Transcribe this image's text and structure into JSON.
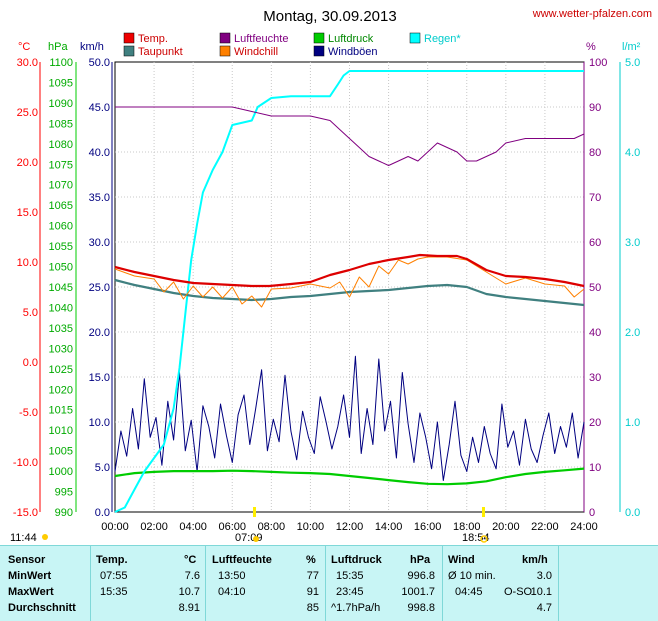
{
  "header": {
    "title": "Montag, 30.09.2013",
    "site": "www.wetter-pfalzen.com"
  },
  "chart_data": {
    "type": "line",
    "title": "Montag, 30.09.2013",
    "grid": true,
    "x": {
      "range": [
        0,
        24
      ],
      "ticks": [
        "00:00",
        "02:00",
        "04:00",
        "06:00",
        "08:00",
        "10:00",
        "12:00",
        "14:00",
        "16:00",
        "18:00",
        "20:00",
        "22:00",
        "24:00"
      ]
    },
    "axes": {
      "temp": {
        "unit": "°C",
        "range": [
          -15,
          30
        ],
        "color": "#ff0000",
        "ticks": [
          "30.0",
          "25.0",
          "20.0",
          "15.0",
          "10.0",
          "5.0",
          "0.0",
          "-5.0",
          "-10.0",
          "-15.0"
        ]
      },
      "pressure": {
        "unit": "hPa",
        "range": [
          990,
          1100
        ],
        "color": "#00cc00",
        "ticks": [
          "1100",
          "1095",
          "1090",
          "1085",
          "1080",
          "1075",
          "1070",
          "1065",
          "1060",
          "1055",
          "1050",
          "1045",
          "1040",
          "1035",
          "1030",
          "1025",
          "1020",
          "1015",
          "1010",
          "1005",
          "1000",
          "995",
          "990"
        ]
      },
      "wind": {
        "unit": "km/h",
        "range": [
          0,
          50
        ],
        "color": "#000080",
        "ticks": [
          "50.0",
          "45.0",
          "40.0",
          "35.0",
          "30.0",
          "25.0",
          "20.0",
          "15.0",
          "10.0",
          "5.0",
          "0.0"
        ]
      },
      "humidity": {
        "unit": "%",
        "range": [
          0,
          100
        ],
        "color": "#800080",
        "ticks": [
          "100",
          "90",
          "80",
          "70",
          "60",
          "50",
          "40",
          "30",
          "20",
          "10",
          "0"
        ]
      },
      "rain": {
        "unit": "l/m²",
        "range": [
          0,
          5
        ],
        "color": "#00cccc",
        "ticks": [
          "5.0",
          "4.0",
          "3.0",
          "2.0",
          "1.0",
          "0.0"
        ]
      }
    },
    "legend": [
      {
        "name": "Temp.",
        "color": "#ee0000"
      },
      {
        "name": "Luftfeuchte",
        "color": "#800080"
      },
      {
        "name": "Luftdruck",
        "color": "#00cc00"
      },
      {
        "name": "Regen*",
        "color": "#00ffff"
      },
      {
        "name": "Taupunkt",
        "color": "#408080"
      },
      {
        "name": "Windchill",
        "color": "#ff8000"
      },
      {
        "name": "Windböen",
        "color": "#000080"
      }
    ],
    "series": [
      {
        "name": "Temp.",
        "axis": "temp",
        "color": "#dd0000",
        "x": [
          0,
          1,
          2,
          3,
          4,
          5,
          6,
          7,
          7.9,
          9,
          10,
          11,
          12,
          13,
          14,
          15,
          15.6,
          16.5,
          17.5,
          18,
          19,
          20,
          21,
          22,
          23,
          24
        ],
        "y": [
          9.5,
          9.0,
          8.6,
          8.2,
          7.9,
          7.8,
          7.7,
          7.6,
          7.6,
          7.8,
          8.0,
          8.7,
          9.2,
          9.8,
          10.2,
          10.5,
          10.7,
          10.6,
          10.6,
          10.3,
          9.2,
          8.6,
          8.5,
          8.3,
          8.0,
          7.6
        ]
      },
      {
        "name": "Taupunkt",
        "axis": "temp",
        "color": "#408080",
        "x": [
          0,
          1,
          2,
          3,
          4,
          5,
          6,
          7,
          8,
          9,
          10,
          11,
          12,
          13,
          14,
          15,
          16,
          17,
          18,
          19,
          20,
          21,
          22,
          23,
          24
        ],
        "y": [
          8.2,
          7.7,
          7.3,
          6.9,
          6.6,
          6.4,
          6.3,
          6.2,
          6.3,
          6.5,
          6.6,
          6.8,
          7.0,
          7.1,
          7.2,
          7.4,
          7.6,
          7.7,
          7.5,
          6.8,
          6.5,
          6.3,
          6.1,
          5.9,
          5.7
        ]
      },
      {
        "name": "Windchill",
        "axis": "temp",
        "color": "#ff8000",
        "x": [
          0,
          1,
          2,
          2.5,
          3,
          3.5,
          4,
          4.5,
          5,
          5.5,
          6,
          6.5,
          7,
          7.5,
          8,
          9,
          10,
          11,
          11.5,
          12,
          12.5,
          13,
          13.5,
          14,
          14.5,
          15,
          15.5,
          16,
          17,
          18,
          19,
          20,
          21,
          22,
          23,
          23.5,
          24
        ],
        "y": [
          9.3,
          8.6,
          8.3,
          7.0,
          8.0,
          6.3,
          7.6,
          6.5,
          7.5,
          6.4,
          7.5,
          5.8,
          6.6,
          5.5,
          7.3,
          7.4,
          7.8,
          7.4,
          8.0,
          6.5,
          8.5,
          7.5,
          9.6,
          8.8,
          10.2,
          9.8,
          10.3,
          10.5,
          10.5,
          10.2,
          9.0,
          7.8,
          8.4,
          7.8,
          7.6,
          6.5,
          7.3
        ]
      },
      {
        "name": "Luftfeuchte",
        "axis": "humidity",
        "color": "#800080",
        "x": [
          0,
          2,
          3,
          4,
          5,
          6,
          7,
          8,
          9,
          10,
          11,
          11.5,
          12,
          12.5,
          13,
          13.5,
          14,
          14.5,
          15,
          15.5,
          16,
          16.5,
          17,
          17.5,
          18,
          18.5,
          19,
          19.5,
          20,
          21,
          22,
          23,
          23.5,
          24
        ],
        "y": [
          90,
          90,
          90,
          90,
          90,
          90,
          89,
          88,
          88,
          88,
          87,
          85,
          83,
          81,
          79,
          78,
          77,
          78,
          79,
          78,
          80,
          82,
          81,
          80,
          78,
          78,
          79,
          80,
          82,
          83,
          83,
          83,
          83,
          84
        ]
      },
      {
        "name": "Luftdruck",
        "axis": "pressure",
        "color": "#00cc00",
        "x": [
          0,
          1,
          2,
          3,
          4,
          5,
          6,
          7,
          8,
          9,
          10,
          11,
          12,
          13,
          14,
          15,
          16,
          17,
          18,
          19,
          20,
          21,
          22,
          23,
          24
        ],
        "y": [
          998.8,
          999.5,
          999.8,
          1000.0,
          1000.0,
          1000.0,
          1000.1,
          1000.0,
          999.8,
          999.6,
          999.5,
          999.3,
          998.8,
          998.3,
          997.8,
          997.3,
          996.9,
          996.8,
          997.0,
          997.5,
          998.5,
          999.3,
          999.8,
          1000.2,
          1000.6
        ]
      },
      {
        "name": "Regen*",
        "axis": "rain",
        "color": "#00ffff",
        "x": [
          0,
          0.5,
          1.0,
          1.5,
          2.0,
          2.5,
          3.0,
          3.3,
          3.6,
          3.9,
          4.2,
          4.5,
          5.0,
          5.5,
          6.0,
          7.0,
          7.3,
          8.0,
          9.0,
          10.0,
          11.0,
          11.4,
          11.7,
          12.0,
          13.0,
          16.0,
          20.0,
          24.0
        ],
        "y": [
          0,
          0.05,
          0.25,
          0.45,
          0.6,
          0.75,
          1.15,
          1.6,
          2.2,
          2.8,
          3.2,
          3.55,
          3.8,
          4.0,
          4.3,
          4.35,
          4.5,
          4.6,
          4.62,
          4.62,
          4.62,
          4.75,
          4.85,
          4.9,
          4.9,
          4.9,
          4.9,
          4.9
        ]
      },
      {
        "name": "Windböen",
        "axis": "wind",
        "color": "#000080",
        "x": [
          0,
          0.3,
          0.6,
          0.9,
          1.2,
          1.5,
          1.8,
          2.1,
          2.4,
          2.7,
          3.0,
          3.3,
          3.6,
          3.9,
          4.2,
          4.5,
          4.8,
          5.1,
          5.4,
          5.7,
          6.0,
          6.3,
          6.6,
          6.9,
          7.2,
          7.5,
          7.8,
          8.1,
          8.4,
          8.7,
          9.0,
          9.3,
          9.6,
          9.9,
          10.2,
          10.5,
          10.8,
          11.1,
          11.4,
          11.7,
          12.0,
          12.3,
          12.6,
          12.9,
          13.2,
          13.5,
          13.8,
          14.1,
          14.4,
          14.7,
          15.0,
          15.3,
          15.6,
          15.9,
          16.2,
          16.5,
          16.8,
          17.1,
          17.4,
          17.7,
          18.0,
          18.3,
          18.6,
          18.9,
          19.2,
          19.5,
          19.8,
          20.1,
          20.4,
          20.7,
          21.0,
          21.3,
          21.6,
          21.9,
          22.2,
          22.5,
          22.8,
          23.1,
          23.4,
          23.7,
          24.0
        ],
        "y": [
          4.5,
          9.0,
          6.2,
          11.5,
          7.0,
          14.8,
          8.3,
          10.5,
          5.2,
          12.3,
          8.0,
          15.5,
          6.8,
          10.2,
          4.5,
          11.8,
          9.5,
          6.0,
          12.0,
          8.5,
          5.5,
          10.8,
          13.0,
          7.5,
          11.5,
          15.8,
          6.8,
          10.3,
          7.8,
          15.2,
          9.0,
          5.8,
          11.2,
          8.3,
          6.5,
          12.8,
          10.0,
          7.0,
          9.5,
          13.0,
          8.3,
          17.3,
          6.5,
          11.5,
          7.5,
          17.0,
          9.0,
          12.3,
          6.0,
          15.5,
          9.8,
          5.5,
          11.0,
          8.3,
          4.8,
          10.0,
          3.5,
          7.5,
          12.3,
          6.3,
          4.5,
          8.3,
          5.5,
          9.5,
          6.5,
          4.8,
          12.0,
          7.2,
          9.0,
          5.2,
          10.3,
          7.0,
          5.5,
          8.5,
          11.0,
          6.5,
          9.5,
          7.2,
          11.0,
          6.0,
          10.0
        ]
      }
    ],
    "markers": [
      {
        "label": "11:44",
        "at": "left",
        "icon": "sun-rise-icon"
      },
      {
        "label": "07:09",
        "at": 7.15,
        "icon": "sun-icon"
      },
      {
        "label": "18:54",
        "at": 18.9,
        "icon": "sun-icon"
      }
    ]
  },
  "stats": {
    "headers": {
      "sensor": "Sensor",
      "temp": "Temp.",
      "temp_unit": "°C",
      "hum": "Luftfeuchte",
      "hum_unit": "%",
      "press": "Luftdruck",
      "press_unit": "hPa",
      "wind": "Wind",
      "wind_unit": "km/h"
    },
    "rows": [
      {
        "label": "MinWert",
        "temp_time": "07:55",
        "temp_val": "7.6",
        "hum_time": "13:50",
        "hum_val": "77",
        "press_time": "15:35",
        "press_val": "996.8",
        "wind_label": "Ø 10 min.",
        "wind_dir": "",
        "wind_val": "3.0"
      },
      {
        "label": "MaxWert",
        "temp_time": "15:35",
        "temp_val": "10.7",
        "hum_time": "04:10",
        "hum_val": "91",
        "press_time": "23:45",
        "press_val": "1001.7",
        "wind_label": "04:45",
        "wind_dir": "O-SO",
        "wind_val": "10.1"
      },
      {
        "label": "Durchschnitt",
        "temp_time": "",
        "temp_val": "8.91",
        "hum_time": "",
        "hum_val": "85",
        "press_time": "^1.7hPa/h",
        "press_val": "998.8",
        "wind_label": "",
        "wind_dir": "",
        "wind_val": "4.7"
      }
    ]
  }
}
